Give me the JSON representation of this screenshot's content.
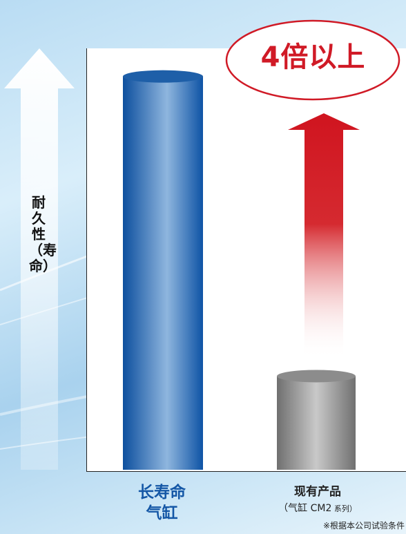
{
  "chart_data": {
    "type": "bar",
    "categories": [
      "长寿命气缸",
      "现有产品"
    ],
    "values": [
      4.2,
      1.0
    ],
    "ylabel": "耐久性（寿命）",
    "ylim": [
      0,
      4.5
    ],
    "grid": false,
    "annotation": "4倍以上",
    "footnote": "※根据本公司试验条件",
    "colors": {
      "bar_long_life": "#1a5fb0",
      "bar_existing": "#8a8a8a",
      "annotation": "#d01a26",
      "axis_arrow": "#ffffff"
    }
  },
  "labels": {
    "cat1_line1": "长寿命",
    "cat1_line2": "气缸",
    "cat2_line1": "现有产品",
    "cat2_line2": "（气缸 CM2",
    "cat2_note": " 系列）"
  }
}
